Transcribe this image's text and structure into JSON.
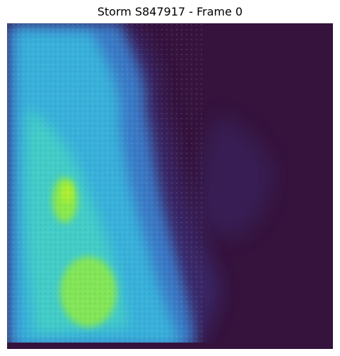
{
  "figure": {
    "title": "Storm S847917 - Frame 0"
  },
  "image": {
    "kind": "radar-intensity-heatmap",
    "colormap": "viridis",
    "colors": {
      "background": "#35133d",
      "low": "#3b2a6e",
      "mid_low": "#3a7ecb",
      "mid": "#37b3dc",
      "mid_high": "#45d2c4",
      "high": "#8eea44",
      "peak": "#b7f02a",
      "axes_frame": "#1a1a1a"
    }
  }
}
